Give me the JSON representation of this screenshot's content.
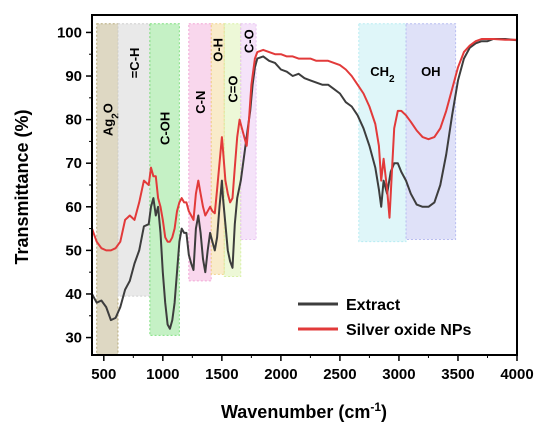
{
  "chart_data": {
    "type": "line",
    "title": "",
    "xlabel": "Wavenumber (cm",
    "xlabel_sup": "-1",
    "xlabel_end": ")",
    "ylabel": "Transmittance (%)",
    "xlim": [
      400,
      4000
    ],
    "ylim": [
      26,
      104
    ],
    "xticks": [
      500,
      1000,
      1500,
      2000,
      2500,
      3000,
      3500,
      4000
    ],
    "yticks": [
      30,
      40,
      50,
      60,
      70,
      80,
      90,
      100
    ],
    "grid": false,
    "legend_position": "bottom-right",
    "bands": [
      {
        "label": "Ag",
        "sub": "2",
        "tail": "O",
        "x": [
          440,
          620
        ],
        "y": [
          26,
          102
        ],
        "color": "#b5a97a",
        "label_y": 80
      },
      {
        "label": "=C-H",
        "x": [
          620,
          890
        ],
        "y": [
          39.5,
          102
        ],
        "color": "#cfcfcf",
        "label_y": 93
      },
      {
        "label": "C-OH",
        "x": [
          890,
          1140
        ],
        "y": [
          30.5,
          102
        ],
        "color": "#7fe07f",
        "label_y": 78
      },
      {
        "label": "C-N",
        "x": [
          1220,
          1410
        ],
        "y": [
          43,
          102
        ],
        "color": "#f2a6d6",
        "label_y": 84
      },
      {
        "label": "O-H",
        "x": [
          1410,
          1520
        ],
        "y": [
          44.5,
          102
        ],
        "color": "#f2d28a",
        "label_y": 96
      },
      {
        "label": "C=O",
        "x": [
          1520,
          1660
        ],
        "y": [
          44,
          102
        ],
        "color": "#d8f0a6",
        "label_y": 87
      },
      {
        "label": "C-O",
        "x": [
          1660,
          1790
        ],
        "y": [
          52.5,
          102
        ],
        "color": "#e8c2f2",
        "label_y": 98
      },
      {
        "label": "CH",
        "sub": "2",
        "x": [
          2660,
          3060
        ],
        "y": [
          52,
          102
        ],
        "color": "#b8ecf2",
        "label_y": 90
      },
      {
        "label": "OH",
        "x": [
          3060,
          3480
        ],
        "y": [
          52.5,
          102
        ],
        "color": "#b8bdf0",
        "label_y": 90
      }
    ],
    "series": [
      {
        "name": "Extract",
        "color": "#3d3d3d",
        "points": [
          [
            400,
            40
          ],
          [
            440,
            38
          ],
          [
            480,
            38.5
          ],
          [
            520,
            37
          ],
          [
            560,
            34
          ],
          [
            600,
            34.5
          ],
          [
            640,
            37
          ],
          [
            680,
            41
          ],
          [
            720,
            43
          ],
          [
            760,
            47
          ],
          [
            800,
            50
          ],
          [
            840,
            55.5
          ],
          [
            880,
            56
          ],
          [
            900,
            60
          ],
          [
            920,
            62
          ],
          [
            940,
            58
          ],
          [
            960,
            60
          ],
          [
            980,
            54
          ],
          [
            1000,
            45
          ],
          [
            1020,
            38
          ],
          [
            1040,
            33
          ],
          [
            1060,
            32
          ],
          [
            1080,
            34
          ],
          [
            1100,
            38
          ],
          [
            1120,
            45
          ],
          [
            1140,
            52
          ],
          [
            1160,
            55
          ],
          [
            1180,
            54
          ],
          [
            1200,
            54
          ],
          [
            1220,
            49
          ],
          [
            1240,
            47
          ],
          [
            1260,
            45.5
          ],
          [
            1280,
            55
          ],
          [
            1300,
            58
          ],
          [
            1320,
            54
          ],
          [
            1340,
            48
          ],
          [
            1360,
            45
          ],
          [
            1380,
            50
          ],
          [
            1400,
            54
          ],
          [
            1420,
            52
          ],
          [
            1440,
            50
          ],
          [
            1460,
            53
          ],
          [
            1480,
            60
          ],
          [
            1500,
            66
          ],
          [
            1510,
            62
          ],
          [
            1530,
            56
          ],
          [
            1550,
            50
          ],
          [
            1570,
            47.5
          ],
          [
            1590,
            46
          ],
          [
            1610,
            56
          ],
          [
            1630,
            62
          ],
          [
            1660,
            66
          ],
          [
            1690,
            72
          ],
          [
            1720,
            78
          ],
          [
            1740,
            82
          ],
          [
            1760,
            88
          ],
          [
            1780,
            92
          ],
          [
            1800,
            94
          ],
          [
            1850,
            94.5
          ],
          [
            1900,
            93.5
          ],
          [
            1950,
            93
          ],
          [
            2000,
            91.5
          ],
          [
            2050,
            91
          ],
          [
            2100,
            90
          ],
          [
            2150,
            90.5
          ],
          [
            2200,
            89.5
          ],
          [
            2250,
            89
          ],
          [
            2300,
            88.5
          ],
          [
            2350,
            88
          ],
          [
            2400,
            88
          ],
          [
            2450,
            87
          ],
          [
            2500,
            86
          ],
          [
            2550,
            84
          ],
          [
            2600,
            83
          ],
          [
            2650,
            81
          ],
          [
            2700,
            78
          ],
          [
            2750,
            74
          ],
          [
            2800,
            69
          ],
          [
            2830,
            64
          ],
          [
            2850,
            60
          ],
          [
            2870,
            66
          ],
          [
            2900,
            63
          ],
          [
            2930,
            68
          ],
          [
            2960,
            70
          ],
          [
            2990,
            70
          ],
          [
            3020,
            68
          ],
          [
            3060,
            66
          ],
          [
            3100,
            63
          ],
          [
            3150,
            60.5
          ],
          [
            3200,
            60
          ],
          [
            3250,
            60
          ],
          [
            3300,
            61
          ],
          [
            3350,
            65
          ],
          [
            3400,
            72
          ],
          [
            3450,
            81
          ],
          [
            3500,
            89
          ],
          [
            3550,
            94
          ],
          [
            3600,
            96.5
          ],
          [
            3650,
            97.5
          ],
          [
            3700,
            98
          ],
          [
            3750,
            98
          ],
          [
            3800,
            98.5
          ],
          [
            3900,
            98.5
          ],
          [
            4000,
            98.2
          ]
        ]
      },
      {
        "name": "Silver oxide NPs",
        "color": "#e23a3a",
        "points": [
          [
            400,
            55
          ],
          [
            440,
            52
          ],
          [
            480,
            50.5
          ],
          [
            520,
            50
          ],
          [
            560,
            50
          ],
          [
            600,
            50.5
          ],
          [
            640,
            52
          ],
          [
            680,
            57
          ],
          [
            720,
            58
          ],
          [
            760,
            57
          ],
          [
            800,
            61
          ],
          [
            840,
            66
          ],
          [
            880,
            65
          ],
          [
            900,
            69
          ],
          [
            920,
            67
          ],
          [
            940,
            67
          ],
          [
            960,
            62
          ],
          [
            980,
            60
          ],
          [
            1000,
            57
          ],
          [
            1020,
            53
          ],
          [
            1040,
            52
          ],
          [
            1060,
            52
          ],
          [
            1080,
            53
          ],
          [
            1100,
            55
          ],
          [
            1120,
            59
          ],
          [
            1140,
            61
          ],
          [
            1160,
            62
          ],
          [
            1180,
            61
          ],
          [
            1200,
            61
          ],
          [
            1220,
            59
          ],
          [
            1240,
            58
          ],
          [
            1260,
            57
          ],
          [
            1280,
            63
          ],
          [
            1300,
            66
          ],
          [
            1320,
            63
          ],
          [
            1340,
            60
          ],
          [
            1360,
            58
          ],
          [
            1380,
            59
          ],
          [
            1400,
            60
          ],
          [
            1420,
            59
          ],
          [
            1440,
            58.5
          ],
          [
            1460,
            64
          ],
          [
            1480,
            70
          ],
          [
            1500,
            76
          ],
          [
            1510,
            73
          ],
          [
            1530,
            66
          ],
          [
            1550,
            63
          ],
          [
            1570,
            61
          ],
          [
            1590,
            62
          ],
          [
            1610,
            69
          ],
          [
            1630,
            76
          ],
          [
            1650,
            80
          ],
          [
            1670,
            78
          ],
          [
            1690,
            76
          ],
          [
            1710,
            74
          ],
          [
            1730,
            80
          ],
          [
            1750,
            88
          ],
          [
            1780,
            94
          ],
          [
            1800,
            95.5
          ],
          [
            1850,
            96
          ],
          [
            1900,
            95.5
          ],
          [
            1950,
            95
          ],
          [
            2000,
            95
          ],
          [
            2050,
            94.5
          ],
          [
            2100,
            94.5
          ],
          [
            2150,
            94
          ],
          [
            2200,
            94
          ],
          [
            2250,
            94
          ],
          [
            2300,
            93.5
          ],
          [
            2350,
            93.5
          ],
          [
            2400,
            93.5
          ],
          [
            2450,
            93
          ],
          [
            2500,
            92.5
          ],
          [
            2550,
            91.5
          ],
          [
            2600,
            90
          ],
          [
            2650,
            88
          ],
          [
            2700,
            86
          ],
          [
            2750,
            83
          ],
          [
            2800,
            79
          ],
          [
            2830,
            74
          ],
          [
            2850,
            66
          ],
          [
            2870,
            71
          ],
          [
            2900,
            64
          ],
          [
            2920,
            57.5
          ],
          [
            2940,
            68
          ],
          [
            2960,
            78
          ],
          [
            2990,
            82
          ],
          [
            3020,
            82
          ],
          [
            3060,
            81
          ],
          [
            3100,
            79.5
          ],
          [
            3150,
            77.5
          ],
          [
            3200,
            76
          ],
          [
            3250,
            75.5
          ],
          [
            3300,
            76
          ],
          [
            3350,
            78
          ],
          [
            3400,
            82
          ],
          [
            3450,
            87
          ],
          [
            3500,
            92
          ],
          [
            3550,
            95.5
          ],
          [
            3600,
            97
          ],
          [
            3650,
            98
          ],
          [
            3700,
            98.5
          ],
          [
            3800,
            98.5
          ],
          [
            3900,
            98.3
          ],
          [
            4000,
            98.3
          ]
        ]
      }
    ]
  }
}
